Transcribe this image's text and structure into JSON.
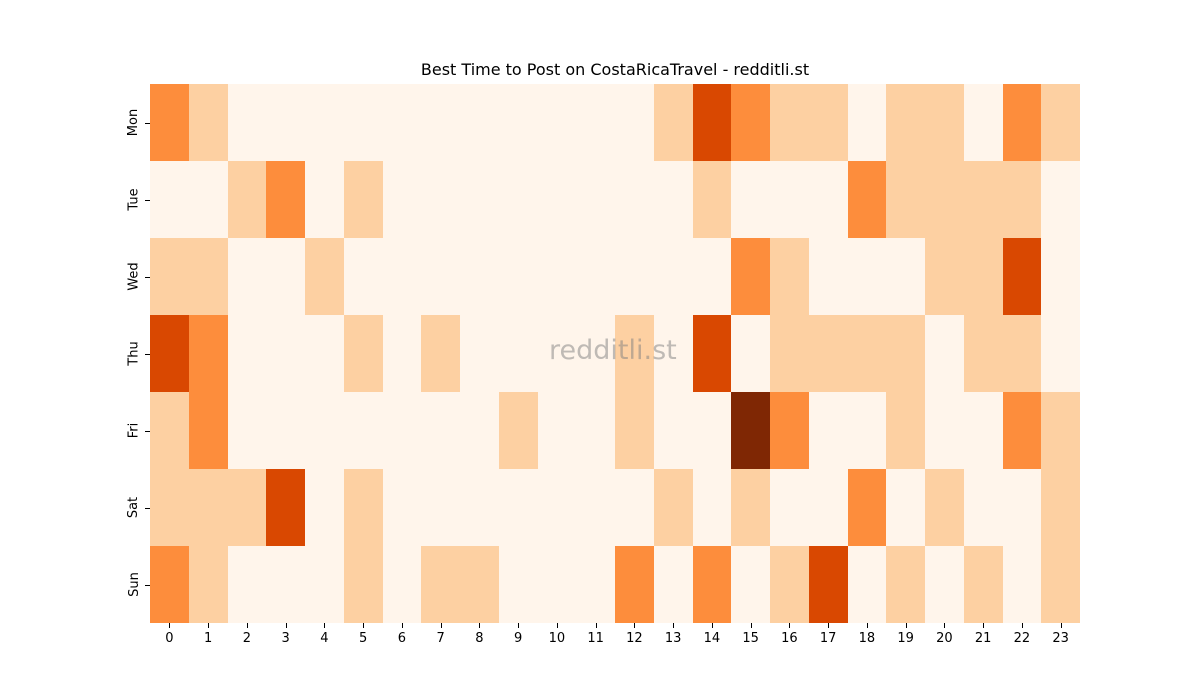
{
  "chart_data": {
    "type": "heatmap",
    "title": "Best Time to Post on CostaRicaTravel - redditli.st",
    "xlabel": "",
    "ylabel": "",
    "x": [
      0,
      1,
      2,
      3,
      4,
      5,
      6,
      7,
      8,
      9,
      10,
      11,
      12,
      13,
      14,
      15,
      16,
      17,
      18,
      19,
      20,
      21,
      22,
      23
    ],
    "y": [
      "Mon",
      "Tue",
      "Wed",
      "Thu",
      "Fri",
      "Sat",
      "Sun"
    ],
    "values": [
      [
        2,
        1,
        0,
        0,
        0,
        0,
        0,
        0,
        0,
        0,
        0,
        0,
        0,
        1,
        3,
        2,
        1,
        1,
        0,
        1,
        1,
        0,
        2,
        1
      ],
      [
        0,
        0,
        1,
        2,
        0,
        1,
        0,
        0,
        0,
        0,
        0,
        0,
        0,
        0,
        1,
        0,
        0,
        0,
        2,
        1,
        1,
        1,
        1,
        0
      ],
      [
        1,
        1,
        0,
        0,
        1,
        0,
        0,
        0,
        0,
        0,
        0,
        0,
        0,
        0,
        0,
        2,
        1,
        0,
        0,
        0,
        1,
        1,
        3,
        0
      ],
      [
        3,
        2,
        0,
        0,
        0,
        1,
        0,
        1,
        0,
        0,
        0,
        0,
        1,
        0,
        3,
        0,
        1,
        1,
        1,
        1,
        0,
        1,
        1,
        0
      ],
      [
        1,
        2,
        0,
        0,
        0,
        0,
        0,
        0,
        0,
        1,
        0,
        0,
        1,
        0,
        0,
        4,
        2,
        0,
        0,
        1,
        0,
        0,
        2,
        1
      ],
      [
        1,
        1,
        1,
        3,
        0,
        1,
        0,
        0,
        0,
        0,
        0,
        0,
        0,
        1,
        0,
        1,
        0,
        0,
        2,
        0,
        1,
        0,
        0,
        1
      ],
      [
        2,
        1,
        0,
        0,
        0,
        1,
        0,
        1,
        1,
        0,
        0,
        0,
        2,
        0,
        2,
        0,
        1,
        3,
        0,
        1,
        0,
        1,
        0,
        1
      ]
    ],
    "colormap": "Oranges",
    "colors": [
      "#fff5eb",
      "#fdd0a2",
      "#fd8d3c",
      "#d94801",
      "#7f2704"
    ],
    "colorbar": false,
    "grid": false,
    "legend": "none",
    "watermark": "redditli.st"
  }
}
